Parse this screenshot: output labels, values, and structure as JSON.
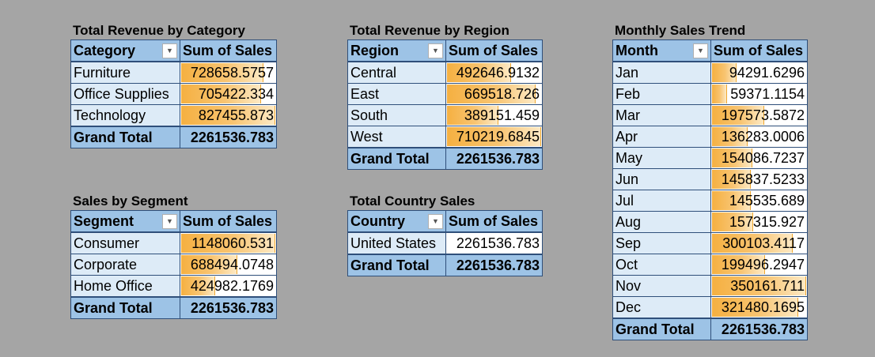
{
  "pivots": [
    {
      "id": "category",
      "title": "Total Revenue by Category",
      "headers": [
        "Category",
        "Sum of Sales"
      ],
      "rows": [
        {
          "label": "Furniture",
          "value": "728658.5757",
          "bar_fraction": 0.88
        },
        {
          "label": "Office Supplies",
          "value": "705422.334",
          "bar_fraction": 0.85
        },
        {
          "label": "Technology",
          "value": "827455.873",
          "bar_fraction": 1.0
        }
      ],
      "total": {
        "label": "Grand Total",
        "value": "2261536.783"
      }
    },
    {
      "id": "region",
      "title": "Total Revenue by Region",
      "headers": [
        "Region",
        "Sum of Sales"
      ],
      "rows": [
        {
          "label": "Central",
          "value": "492646.9132",
          "bar_fraction": 0.69
        },
        {
          "label": "East",
          "value": "669518.726",
          "bar_fraction": 0.94
        },
        {
          "label": "South",
          "value": "389151.459",
          "bar_fraction": 0.55
        },
        {
          "label": "West",
          "value": "710219.6845",
          "bar_fraction": 1.0
        }
      ],
      "total": {
        "label": "Grand Total",
        "value": "2261536.783"
      }
    },
    {
      "id": "month",
      "title": "Monthly Sales Trend",
      "headers": [
        "Month",
        "Sum of Sales"
      ],
      "rows": [
        {
          "label": "Jan",
          "value": "94291.6296",
          "bar_fraction": 0.27
        },
        {
          "label": "Feb",
          "value": "59371.1154",
          "bar_fraction": 0.17
        },
        {
          "label": "Mar",
          "value": "197573.5872",
          "bar_fraction": 0.56
        },
        {
          "label": "Apr",
          "value": "136283.0006",
          "bar_fraction": 0.39
        },
        {
          "label": "May",
          "value": "154086.7237",
          "bar_fraction": 0.44
        },
        {
          "label": "Jun",
          "value": "145837.5233",
          "bar_fraction": 0.42
        },
        {
          "label": "Jul",
          "value": "145535.689",
          "bar_fraction": 0.42
        },
        {
          "label": "Aug",
          "value": "157315.927",
          "bar_fraction": 0.45
        },
        {
          "label": "Sep",
          "value": "300103.4117",
          "bar_fraction": 0.86
        },
        {
          "label": "Oct",
          "value": "199496.2947",
          "bar_fraction": 0.57
        },
        {
          "label": "Nov",
          "value": "350161.711",
          "bar_fraction": 1.0
        },
        {
          "label": "Dec",
          "value": "321480.1695",
          "bar_fraction": 0.92
        }
      ],
      "total": {
        "label": "Grand Total",
        "value": "2261536.783"
      }
    },
    {
      "id": "segment",
      "title": "Sales by Segment",
      "headers": [
        "Segment",
        "Sum of Sales"
      ],
      "rows": [
        {
          "label": "Consumer",
          "value": "1148060.531",
          "bar_fraction": 1.0
        },
        {
          "label": "Corporate",
          "value": "688494.0748",
          "bar_fraction": 0.6
        },
        {
          "label": "Home Office",
          "value": "424982.1769",
          "bar_fraction": 0.37
        }
      ],
      "total": {
        "label": "Grand Total",
        "value": "2261536.783"
      }
    },
    {
      "id": "country",
      "title": "Total Country Sales",
      "headers": [
        "Country",
        "Sum of Sales"
      ],
      "rows": [
        {
          "label": "United States",
          "value": "2261536.783",
          "bar_fraction": 0
        }
      ],
      "total": {
        "label": "Grand Total",
        "value": "2261536.783"
      }
    }
  ],
  "colors": {
    "background": "#a5a5a5",
    "header_fill": "#9dc3e6",
    "label_fill": "#ddebf7",
    "databar": "#f5b041"
  }
}
